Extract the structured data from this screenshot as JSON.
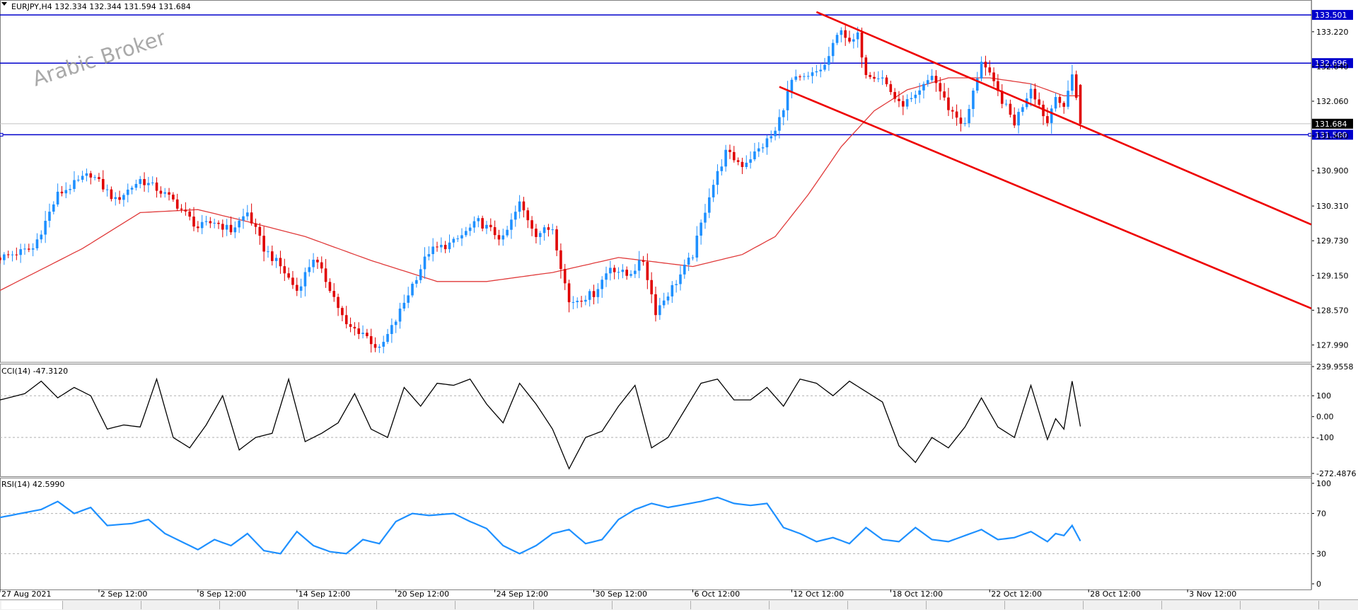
{
  "header": {
    "symbol_info": "EURJPY,H4  132.334 132.344 131.594 131.684"
  },
  "watermark": "Arabic Broker",
  "colors": {
    "bull": "#1e90ff",
    "bear": "#e00000",
    "ma": "#e03a3a",
    "hline": "#0000cc",
    "channel": "#ee0000",
    "cci": "#000000",
    "rsi": "#1e90ff",
    "price_tag_bg": "#0000cc",
    "current_tag_bg": "#000000"
  },
  "chart_data": [
    {
      "type": "candlestick",
      "title": "",
      "ylim": [
        127.7,
        133.75
      ],
      "y_ticks": [
        133.22,
        132.64,
        132.06,
        131.48,
        130.9,
        130.31,
        129.73,
        129.15,
        128.57,
        127.99
      ],
      "y_tick_labels": [
        "133.220",
        "132.640",
        "132.060",
        "131.480",
        "130.900",
        "130.310",
        "129.730",
        "129.150",
        "128.570",
        "127.990"
      ],
      "x_labels": [
        "27 Aug 2021",
        "2 Sep 12:00",
        "8 Sep 12:00",
        "14 Sep 12:00",
        "20 Sep 12:00",
        "24 Sep 12:00",
        "30 Sep 12:00",
        "6 Oct 12:00",
        "12 Oct 12:00",
        "18 Oct 12:00",
        "22 Oct 12:00",
        "28 Oct 12:00",
        "3 Nov 12:00"
      ],
      "close_anchors": [
        [
          0,
          129.45
        ],
        [
          8,
          129.6
        ],
        [
          14,
          130.5
        ],
        [
          22,
          130.85
        ],
        [
          28,
          130.4
        ],
        [
          34,
          130.75
        ],
        [
          38,
          130.6
        ],
        [
          42,
          130.4
        ],
        [
          48,
          129.95
        ],
        [
          52,
          130.05
        ],
        [
          56,
          129.9
        ],
        [
          60,
          130.2
        ],
        [
          64,
          129.6
        ],
        [
          68,
          129.3
        ],
        [
          72,
          128.9
        ],
        [
          76,
          129.45
        ],
        [
          80,
          128.95
        ],
        [
          84,
          128.3
        ],
        [
          88,
          128.2
        ],
        [
          92,
          127.9
        ],
        [
          96,
          128.4
        ],
        [
          100,
          129.0
        ],
        [
          104,
          129.55
        ],
        [
          110,
          129.7
        ],
        [
          116,
          130.05
        ],
        [
          122,
          129.75
        ],
        [
          126,
          130.35
        ],
        [
          130,
          129.85
        ],
        [
          134,
          129.95
        ],
        [
          138,
          128.7
        ],
        [
          144,
          128.85
        ],
        [
          148,
          129.3
        ],
        [
          152,
          129.15
        ],
        [
          156,
          129.4
        ],
        [
          159,
          128.55
        ],
        [
          164,
          129.05
        ],
        [
          168,
          129.5
        ],
        [
          172,
          130.5
        ],
        [
          176,
          131.2
        ],
        [
          180,
          131.0
        ],
        [
          184,
          131.25
        ],
        [
          188,
          131.55
        ],
        [
          192,
          132.4
        ],
        [
          196,
          132.45
        ],
        [
          200,
          132.65
        ],
        [
          204,
          133.3
        ],
        [
          206,
          133.0
        ],
        [
          208,
          133.15
        ],
        [
          210,
          132.55
        ],
        [
          214,
          132.45
        ],
        [
          218,
          132.0
        ],
        [
          222,
          132.1
        ],
        [
          226,
          132.5
        ],
        [
          230,
          131.95
        ],
        [
          234,
          131.65
        ],
        [
          238,
          132.75
        ],
        [
          242,
          132.2
        ],
        [
          246,
          131.7
        ],
        [
          250,
          132.3
        ],
        [
          254,
          131.7
        ],
        [
          256,
          132.2
        ],
        [
          258,
          131.9
        ],
        [
          260,
          132.55
        ],
        [
          262,
          131.7
        ]
      ],
      "last_bar": {
        "open": 132.334,
        "high": 132.344,
        "low": 131.594,
        "close": 131.684
      },
      "moving_average_anchors": [
        [
          0,
          128.9
        ],
        [
          20,
          129.6
        ],
        [
          34,
          130.2
        ],
        [
          48,
          130.25
        ],
        [
          60,
          130.05
        ],
        [
          74,
          129.8
        ],
        [
          90,
          129.4
        ],
        [
          106,
          129.05
        ],
        [
          118,
          129.05
        ],
        [
          134,
          129.2
        ],
        [
          150,
          129.45
        ],
        [
          168,
          129.3
        ],
        [
          180,
          129.5
        ],
        [
          188,
          129.8
        ],
        [
          196,
          130.5
        ],
        [
          204,
          131.3
        ],
        [
          212,
          131.9
        ],
        [
          220,
          132.25
        ],
        [
          230,
          132.45
        ],
        [
          240,
          132.45
        ],
        [
          250,
          132.35
        ],
        [
          258,
          132.15
        ],
        [
          262,
          132.15
        ]
      ],
      "horizontal_levels": [
        133.501,
        132.696,
        131.5
      ],
      "horizontal_level_labels": [
        "133.501",
        "132.696",
        "131.500"
      ],
      "current_price": 131.684,
      "current_price_label": "131.684",
      "channel": {
        "upper": {
          "from": [
            198,
            133.55
          ],
          "to": [
            318,
            130.0
          ]
        },
        "lower": {
          "from": [
            189,
            132.3
          ],
          "to": [
            318,
            128.6
          ]
        }
      }
    },
    {
      "type": "line",
      "indicator_label": "CCI(14) -47.3120",
      "ylim": [
        -272.4876,
        239.9558
      ],
      "y_tick_labels": [
        "239.9558",
        "100",
        "0.00",
        "-100",
        "-272.4876"
      ],
      "levels": [
        100,
        -100
      ],
      "anchors": [
        [
          0,
          80
        ],
        [
          6,
          110
        ],
        [
          10,
          170
        ],
        [
          14,
          90
        ],
        [
          18,
          140
        ],
        [
          22,
          100
        ],
        [
          26,
          -60
        ],
        [
          30,
          -40
        ],
        [
          34,
          -50
        ],
        [
          38,
          180
        ],
        [
          42,
          -100
        ],
        [
          46,
          -150
        ],
        [
          50,
          -40
        ],
        [
          54,
          100
        ],
        [
          58,
          -160
        ],
        [
          62,
          -100
        ],
        [
          66,
          -80
        ],
        [
          70,
          180
        ],
        [
          74,
          -120
        ],
        [
          78,
          -80
        ],
        [
          82,
          -30
        ],
        [
          86,
          110
        ],
        [
          90,
          -60
        ],
        [
          94,
          -100
        ],
        [
          98,
          140
        ],
        [
          102,
          50
        ],
        [
          106,
          160
        ],
        [
          110,
          150
        ],
        [
          114,
          180
        ],
        [
          118,
          60
        ],
        [
          122,
          -30
        ],
        [
          126,
          160
        ],
        [
          130,
          60
        ],
        [
          134,
          -60
        ],
        [
          138,
          -250
        ],
        [
          142,
          -100
        ],
        [
          146,
          -70
        ],
        [
          150,
          50
        ],
        [
          154,
          150
        ],
        [
          158,
          -150
        ],
        [
          162,
          -100
        ],
        [
          166,
          30
        ],
        [
          170,
          160
        ],
        [
          174,
          180
        ],
        [
          178,
          80
        ],
        [
          182,
          80
        ],
        [
          186,
          140
        ],
        [
          190,
          50
        ],
        [
          194,
          180
        ],
        [
          198,
          160
        ],
        [
          202,
          100
        ],
        [
          206,
          170
        ],
        [
          210,
          120
        ],
        [
          214,
          70
        ],
        [
          218,
          -140
        ],
        [
          222,
          -220
        ],
        [
          226,
          -100
        ],
        [
          230,
          -150
        ],
        [
          234,
          -50
        ],
        [
          238,
          90
        ],
        [
          242,
          -50
        ],
        [
          246,
          -100
        ],
        [
          250,
          150
        ],
        [
          254,
          -110
        ],
        [
          256,
          -10
        ],
        [
          258,
          -60
        ],
        [
          260,
          170
        ],
        [
          262,
          -47.312
        ]
      ]
    },
    {
      "type": "line",
      "indicator_label": "RSI(14) 42.5990",
      "ylim": [
        0,
        100
      ],
      "y_tick_labels": [
        "100",
        "70",
        "30",
        "0"
      ],
      "levels": [
        70,
        30
      ],
      "anchors": [
        [
          0,
          66
        ],
        [
          10,
          74
        ],
        [
          14,
          82
        ],
        [
          18,
          70
        ],
        [
          22,
          76
        ],
        [
          26,
          58
        ],
        [
          32,
          60
        ],
        [
          36,
          64
        ],
        [
          40,
          50
        ],
        [
          44,
          42
        ],
        [
          48,
          34
        ],
        [
          52,
          44
        ],
        [
          56,
          38
        ],
        [
          60,
          50
        ],
        [
          64,
          33
        ],
        [
          68,
          30
        ],
        [
          72,
          52
        ],
        [
          76,
          38
        ],
        [
          80,
          32
        ],
        [
          84,
          30
        ],
        [
          88,
          44
        ],
        [
          92,
          40
        ],
        [
          96,
          62
        ],
        [
          100,
          70
        ],
        [
          104,
          68
        ],
        [
          110,
          70
        ],
        [
          114,
          62
        ],
        [
          118,
          55
        ],
        [
          122,
          38
        ],
        [
          126,
          30
        ],
        [
          130,
          38
        ],
        [
          134,
          50
        ],
        [
          138,
          54
        ],
        [
          142,
          40
        ],
        [
          146,
          44
        ],
        [
          150,
          64
        ],
        [
          154,
          74
        ],
        [
          158,
          80
        ],
        [
          162,
          76
        ],
        [
          166,
          79
        ],
        [
          170,
          82
        ],
        [
          174,
          86
        ],
        [
          178,
          80
        ],
        [
          182,
          78
        ],
        [
          186,
          80
        ],
        [
          190,
          56
        ],
        [
          194,
          50
        ],
        [
          198,
          42
        ],
        [
          202,
          46
        ],
        [
          206,
          40
        ],
        [
          210,
          56
        ],
        [
          214,
          44
        ],
        [
          218,
          42
        ],
        [
          222,
          56
        ],
        [
          226,
          44
        ],
        [
          230,
          42
        ],
        [
          234,
          48
        ],
        [
          238,
          54
        ],
        [
          242,
          44
        ],
        [
          246,
          46
        ],
        [
          250,
          52
        ],
        [
          254,
          42
        ],
        [
          256,
          50
        ],
        [
          258,
          48
        ],
        [
          260,
          58
        ],
        [
          262,
          42.599
        ]
      ]
    }
  ]
}
